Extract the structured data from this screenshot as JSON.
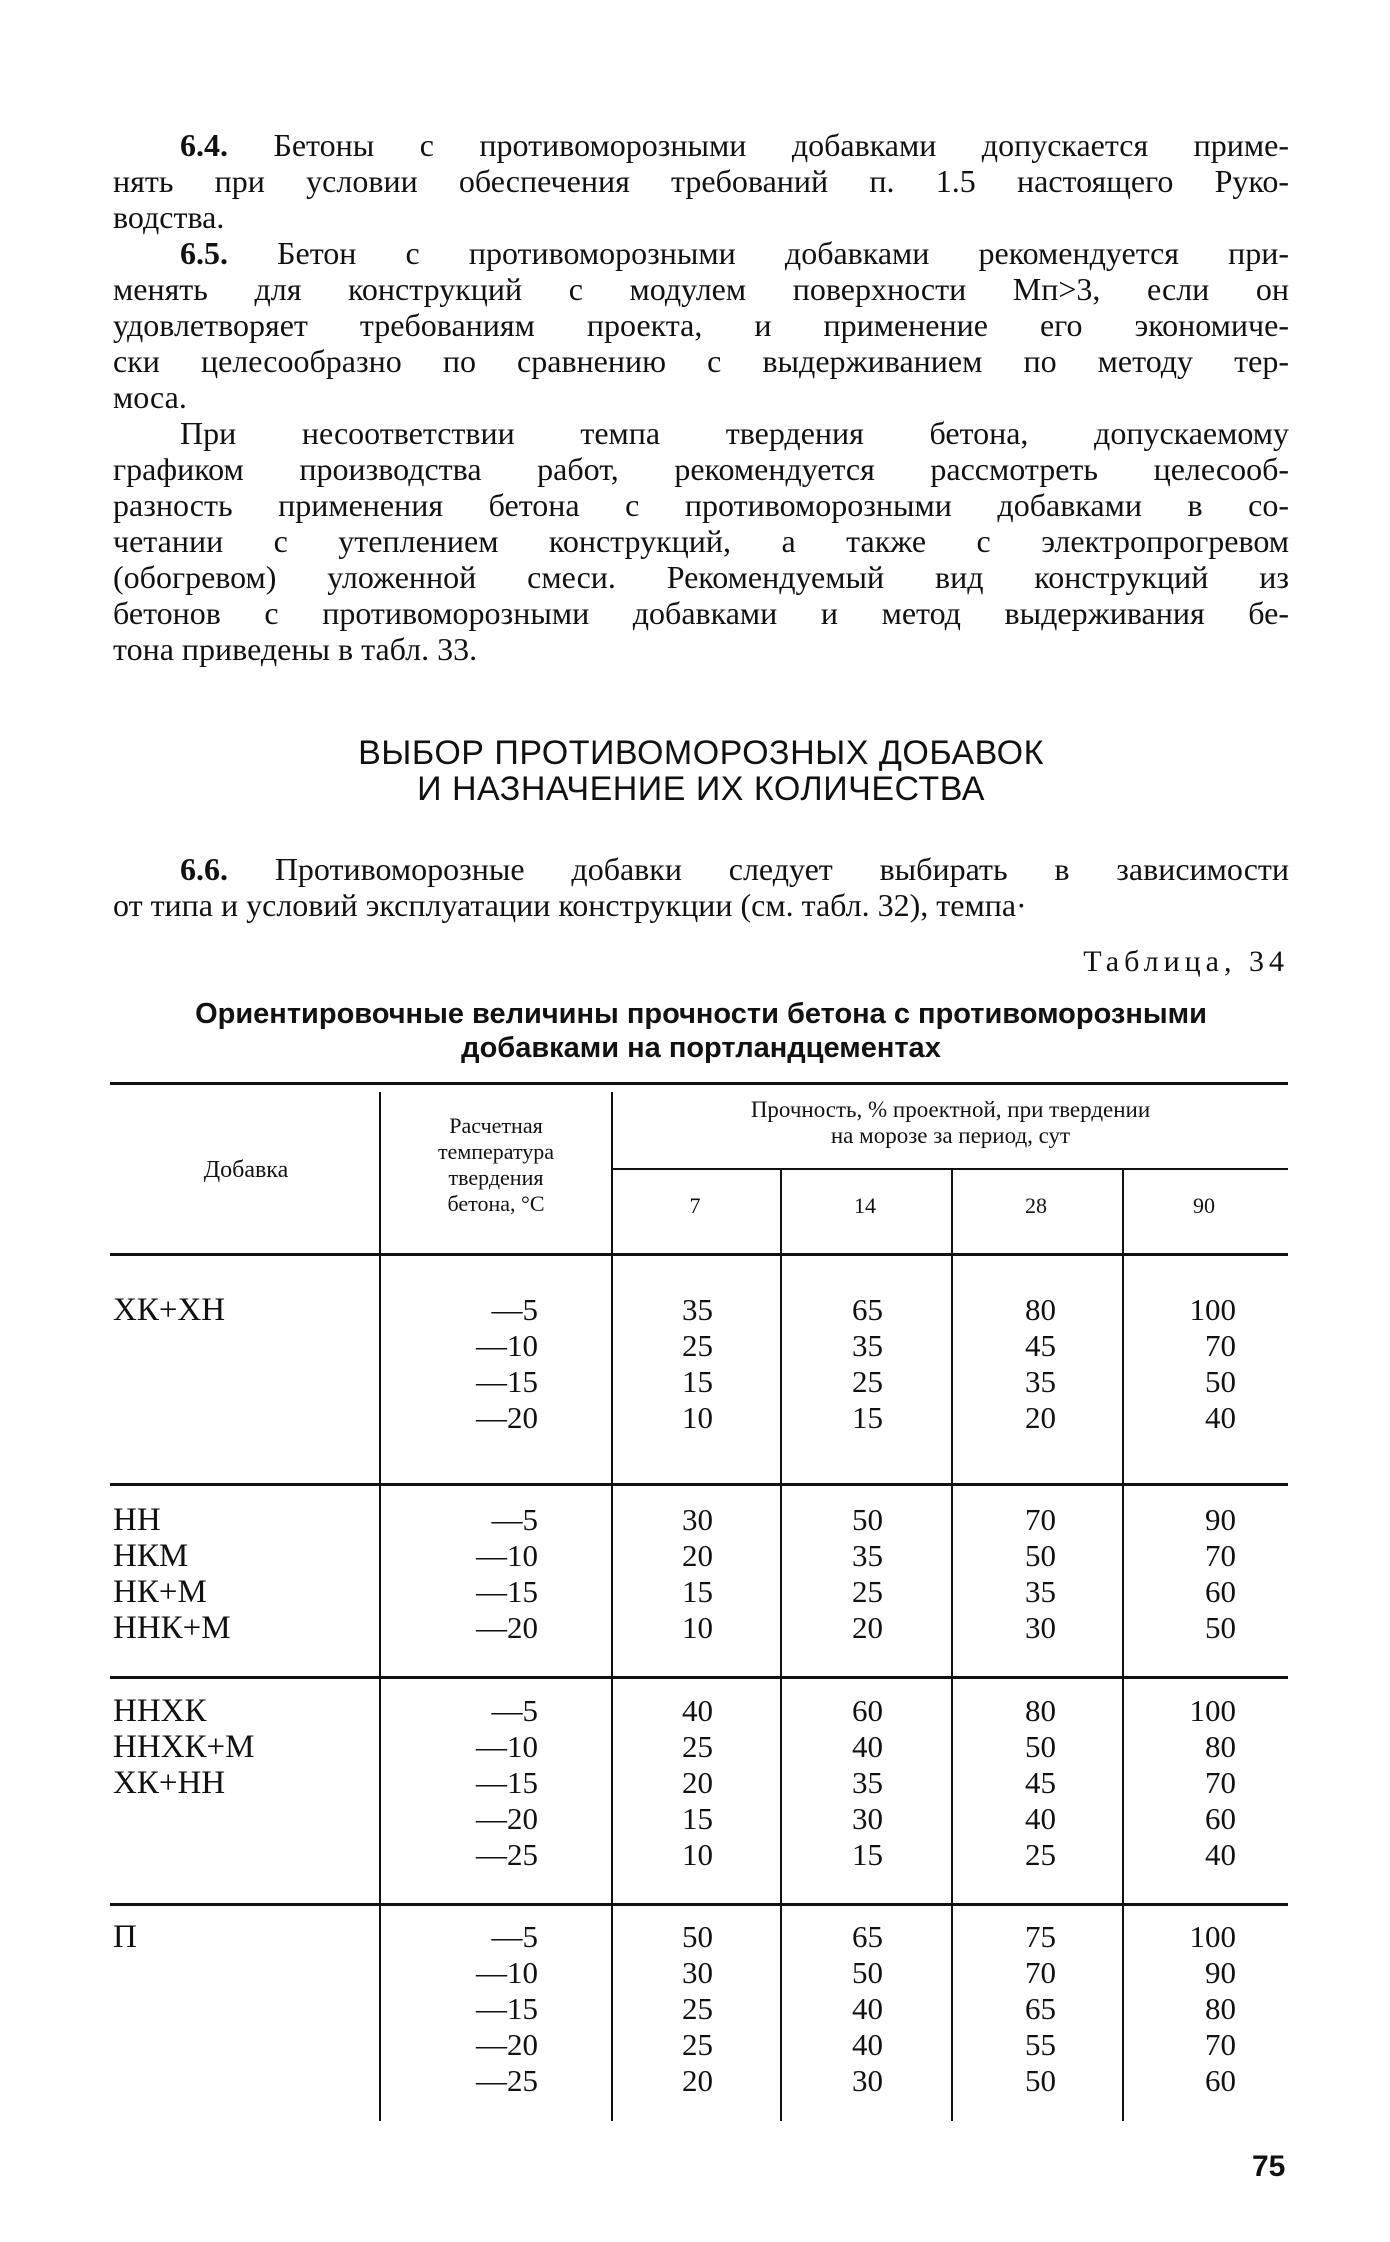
{
  "paragraphs": [
    {
      "num": "6.4.",
      "lines": [
        "Бетоны с противоморозными добавками допускается приме-",
        "нять при условии обеспечения требований п. 1.5 настоящего Руко-",
        "водства."
      ]
    },
    {
      "num": "6.5.",
      "lines": [
        "Бетон с противоморозными добавками рекомендуется при-",
        "менять для конструкций с модулем поверхности Mп>3, если он",
        "удовлетворяет требованиям проекта, и применение его экономиче-",
        "ски целесообразно по сравнению с выдерживанием по методу тер-",
        "моса."
      ]
    },
    {
      "num": "",
      "lines": [
        "При несоответствии темпа твердения бетона, допускаемому",
        "графиком производства работ, рекомендуется рассмотреть целесооб-",
        "разность применения бетона с противоморозными добавками в со-",
        "четании с утеплением конструкций, а также с электропрогревом",
        "(обогревом) уложенной смеси. Рекомендуемый вид конструкций из",
        "бетонов с противоморозными добавками и метод выдерживания бе-",
        "тона приведены в табл. 33."
      ]
    }
  ],
  "section_heading": [
    "ВЫБОР ПРОТИВОМОРОЗНЫХ ДОБАВОК",
    "И НАЗНАЧЕНИЕ ИХ КОЛИЧЕСТВА"
  ],
  "paragraph_66": {
    "num": "6.6.",
    "lines": [
      "Противоморозные добавки следует выбирать в зависимости",
      "от типа и условий эксплуатации конструкции (см. табл. 32), темпа·"
    ]
  },
  "table": {
    "number": "Таблица, 34",
    "title": [
      "Ориентировочные величины прочности бетона с противоморозными",
      "добавками на портландцементах"
    ],
    "headers": {
      "additive": "Добавка",
      "temperature": [
        "Расчетная",
        "температура",
        "твердения",
        "бетона, °С"
      ],
      "strength": [
        "Прочность, % проектной, при твердении",
        "на морозе за период, сут"
      ],
      "periods": [
        "7",
        "14",
        "28",
        "90"
      ]
    },
    "groups": [
      {
        "additives": [
          "ХК+ХН"
        ],
        "rows": [
          [
            "—5",
            "35",
            "65",
            "80",
            "100"
          ],
          [
            "—10",
            "25",
            "35",
            "45",
            "70"
          ],
          [
            "—15",
            "15",
            "25",
            "35",
            "50"
          ],
          [
            "—20",
            "10",
            "15",
            "20",
            "40"
          ]
        ]
      },
      {
        "additives": [
          "НН",
          "НКМ",
          "НК+М",
          "ННК+М"
        ],
        "rows": [
          [
            "—5",
            "30",
            "50",
            "70",
            "90"
          ],
          [
            "—10",
            "20",
            "35",
            "50",
            "70"
          ],
          [
            "—15",
            "15",
            "25",
            "35",
            "60"
          ],
          [
            "—20",
            "10",
            "20",
            "30",
            "50"
          ]
        ]
      },
      {
        "additives": [
          "ННХК",
          "ННХК+М",
          "ХК+НН"
        ],
        "rows": [
          [
            "—5",
            "40",
            "60",
            "80",
            "100"
          ],
          [
            "—10",
            "25",
            "40",
            "50",
            "80"
          ],
          [
            "—15",
            "20",
            "35",
            "45",
            "70"
          ],
          [
            "—20",
            "15",
            "30",
            "40",
            "60"
          ],
          [
            "—25",
            "10",
            "15",
            "25",
            "40"
          ]
        ]
      },
      {
        "additives": [
          "П"
        ],
        "rows": [
          [
            "—5",
            "50",
            "65",
            "75",
            "100"
          ],
          [
            "—10",
            "30",
            "50",
            "70",
            "90"
          ],
          [
            "—15",
            "25",
            "40",
            "65",
            "80"
          ],
          [
            "—20",
            "25",
            "40",
            "55",
            "70"
          ],
          [
            "—25",
            "20",
            "30",
            "50",
            "60"
          ]
        ]
      }
    ]
  },
  "page_number": "75"
}
